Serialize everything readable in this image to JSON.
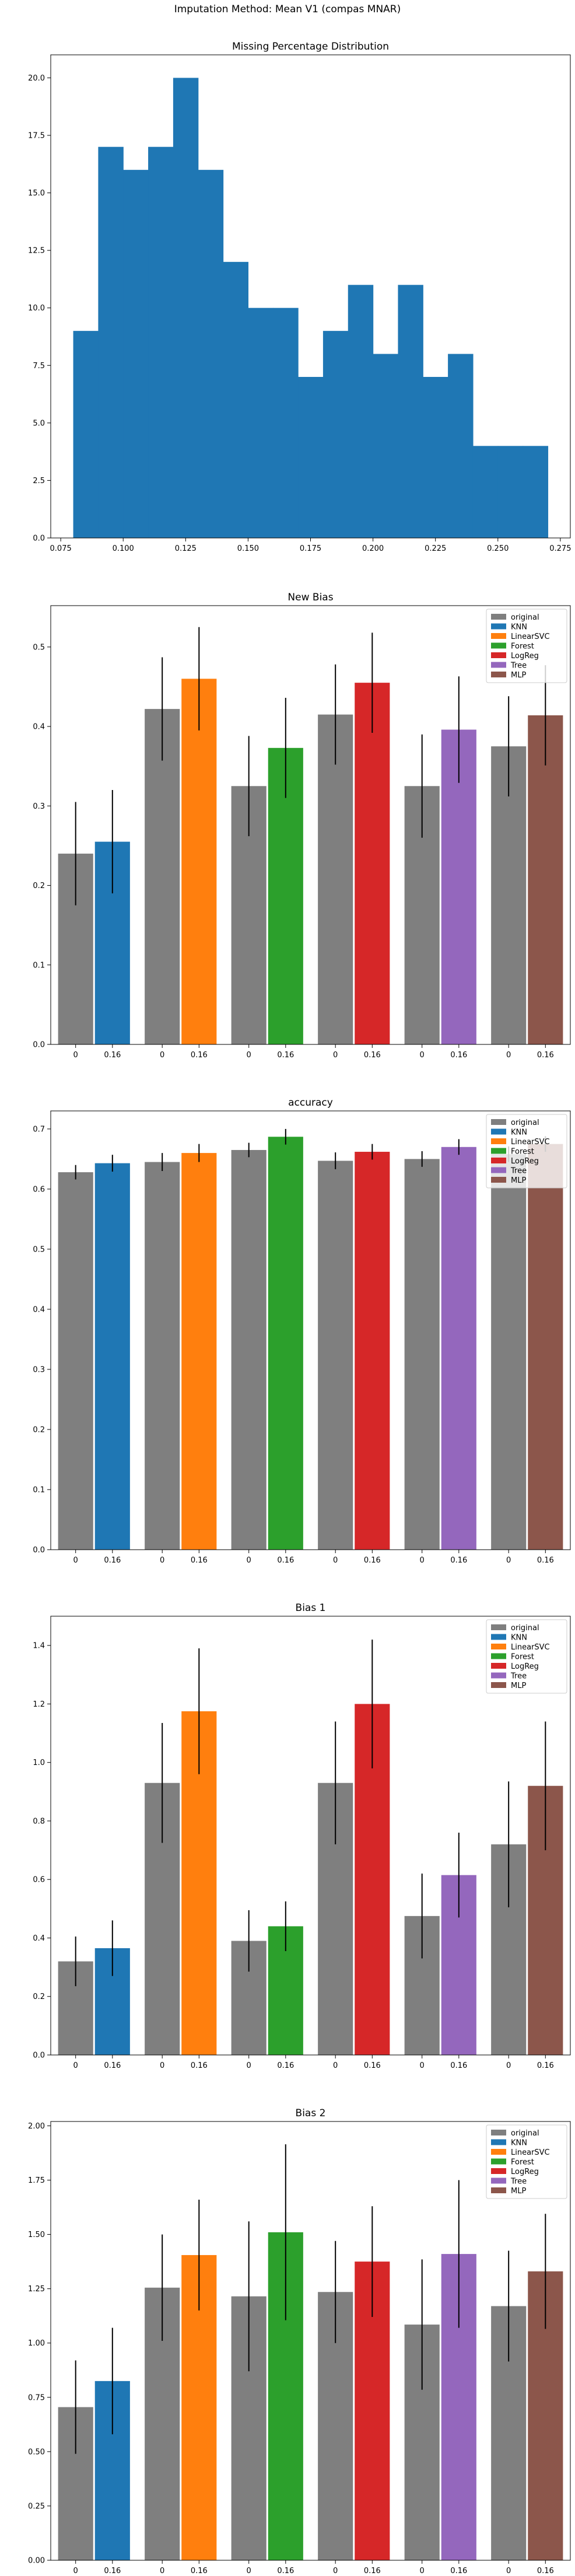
{
  "figure": {
    "suptitle": "Imputation Method: Mean V1 (compas MNAR)"
  },
  "legend": [
    "original",
    "KNN",
    "LinearSVC",
    "Forest",
    "LogReg",
    "Tree",
    "MLP"
  ],
  "colors": {
    "original": "#7f7f7f",
    "KNN": "#1f77b4",
    "LinearSVC": "#ff7f0e",
    "Forest": "#2ca02c",
    "LogReg": "#d62728",
    "Tree": "#9467bd",
    "MLP": "#8c564b",
    "hist": "#1f77b4",
    "error": "#000000"
  },
  "chart_data": [
    {
      "type": "bar",
      "subtype": "histogram",
      "title": "Missing Percentage Distribution",
      "bin_edges": [
        0.08,
        0.09,
        0.1,
        0.11,
        0.12,
        0.13,
        0.14,
        0.15,
        0.16,
        0.17,
        0.18,
        0.19,
        0.2,
        0.21,
        0.22,
        0.23,
        0.24,
        0.25,
        0.26,
        0.27
      ],
      "counts": [
        9,
        17,
        16,
        17,
        20,
        16,
        12,
        10,
        10,
        7,
        9,
        11,
        8,
        11,
        7,
        8,
        4,
        4,
        4
      ],
      "xlim": [
        0.071,
        0.279
      ],
      "ylim": [
        0,
        21
      ],
      "xticks": [
        "0.075",
        "0.100",
        "0.125",
        "0.150",
        "0.175",
        "0.200",
        "0.225",
        "0.250",
        "0.275"
      ],
      "yticks": [
        "0.0",
        "2.5",
        "5.0",
        "7.5",
        "10.0",
        "12.5",
        "15.0",
        "17.5",
        "20.0"
      ],
      "grid": false
    },
    {
      "type": "bar",
      "title": "New Bias",
      "groups": [
        "KNN",
        "LinearSVC",
        "Forest",
        "LogReg",
        "Tree",
        "MLP"
      ],
      "bar_labels": [
        "0",
        "0.16"
      ],
      "original": [
        0.24,
        0.422,
        0.325,
        0.415,
        0.325,
        0.375
      ],
      "original_err": [
        0.065,
        0.065,
        0.063,
        0.063,
        0.065,
        0.063
      ],
      "imputed": [
        0.255,
        0.46,
        0.373,
        0.455,
        0.396,
        0.414
      ],
      "imputed_err": [
        0.065,
        0.065,
        0.063,
        0.063,
        0.067,
        0.063
      ],
      "ylim": [
        0,
        0.552
      ],
      "yticks": [
        "0.0",
        "0.1",
        "0.2",
        "0.3",
        "0.4",
        "0.5"
      ],
      "legend_position": "top-right",
      "grid": false
    },
    {
      "type": "bar",
      "title": "accuracy",
      "groups": [
        "KNN",
        "LinearSVC",
        "Forest",
        "LogReg",
        "Tree",
        "MLP"
      ],
      "bar_labels": [
        "0",
        "0.16"
      ],
      "original": [
        0.628,
        0.645,
        0.665,
        0.647,
        0.65,
        0.658
      ],
      "original_err": [
        0.012,
        0.015,
        0.012,
        0.014,
        0.013,
        0.013
      ],
      "imputed": [
        0.643,
        0.66,
        0.687,
        0.662,
        0.67,
        0.675
      ],
      "imputed_err": [
        0.014,
        0.015,
        0.013,
        0.013,
        0.013,
        0.013
      ],
      "ylim": [
        0,
        0.73
      ],
      "yticks": [
        "0.0",
        "0.1",
        "0.2",
        "0.3",
        "0.4",
        "0.5",
        "0.6",
        "0.7"
      ],
      "legend_position": "top-right",
      "grid": false
    },
    {
      "type": "bar",
      "title": "Bias 1",
      "groups": [
        "KNN",
        "LinearSVC",
        "Forest",
        "LogReg",
        "Tree",
        "MLP"
      ],
      "bar_labels": [
        "0",
        "0.16"
      ],
      "original": [
        0.32,
        0.93,
        0.39,
        0.93,
        0.475,
        0.72
      ],
      "original_err": [
        0.085,
        0.205,
        0.105,
        0.21,
        0.145,
        0.215
      ],
      "imputed": [
        0.365,
        1.175,
        0.44,
        1.2,
        0.615,
        0.92
      ],
      "imputed_err": [
        0.095,
        0.215,
        0.085,
        0.22,
        0.145,
        0.22
      ],
      "ylim": [
        0,
        1.5
      ],
      "yticks": [
        "0.0",
        "0.2",
        "0.4",
        "0.6",
        "0.8",
        "1.0",
        "1.2",
        "1.4"
      ],
      "legend_position": "top-right",
      "grid": false
    },
    {
      "type": "bar",
      "title": "Bias 2",
      "groups": [
        "KNN",
        "LinearSVC",
        "Forest",
        "LogReg",
        "Tree",
        "MLP"
      ],
      "bar_labels": [
        "0",
        "0.16"
      ],
      "original": [
        0.705,
        1.255,
        1.215,
        1.235,
        1.085,
        1.17
      ],
      "original_err": [
        0.215,
        0.245,
        0.345,
        0.235,
        0.3,
        0.255
      ],
      "imputed": [
        0.825,
        1.405,
        1.51,
        1.375,
        1.41,
        1.33
      ],
      "imputed_err": [
        0.245,
        0.255,
        0.405,
        0.255,
        0.34,
        0.265
      ],
      "ylim": [
        0,
        2.02
      ],
      "yticks": [
        "0.00",
        "0.25",
        "0.50",
        "0.75",
        "1.00",
        "1.25",
        "1.50",
        "1.75",
        "2.00"
      ],
      "legend_position": "top-right",
      "grid": false
    }
  ]
}
